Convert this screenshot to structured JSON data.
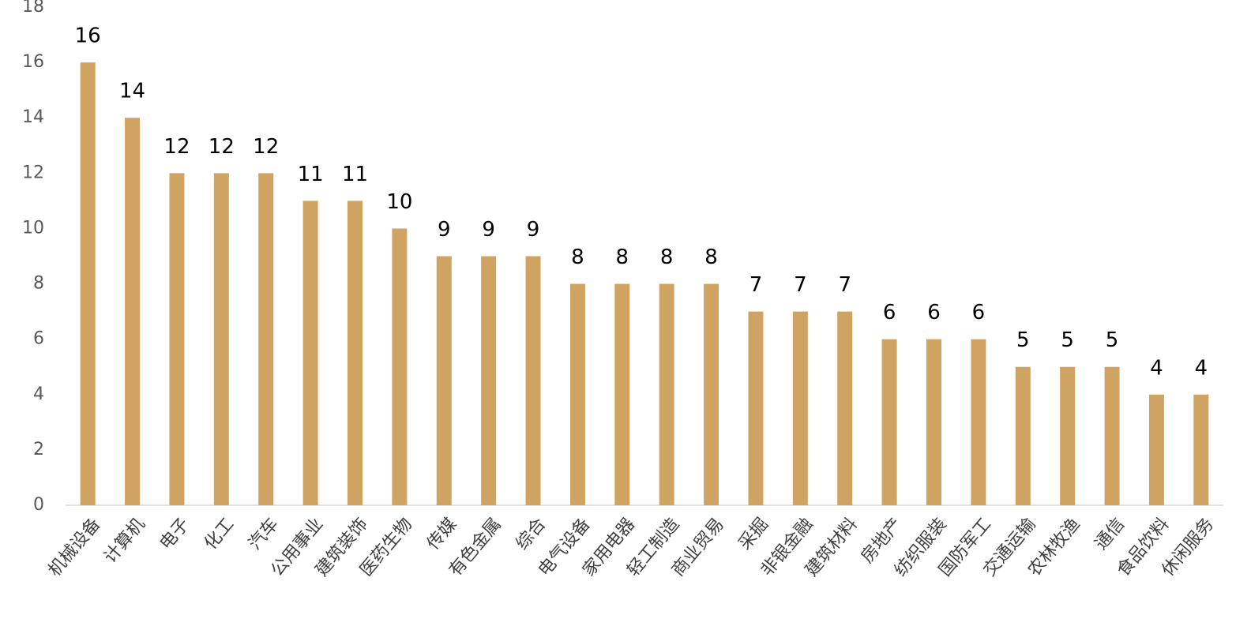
{
  "chart_data": {
    "type": "bar",
    "categories": [
      "机械设备",
      "计算机",
      "电子",
      "化工",
      "汽车",
      "公用事业",
      "建筑装饰",
      "医药生物",
      "传媒",
      "有色金属",
      "综合",
      "电气设备",
      "家用电器",
      "轻工制造",
      "商业贸易",
      "采掘",
      "非银金融",
      "建筑材料",
      "房地产",
      "纺织服装",
      "国防军工",
      "交通运输",
      "农林牧渔",
      "通信",
      "食品饮料",
      "休闲服务"
    ],
    "values": [
      16,
      14,
      12,
      12,
      12,
      11,
      11,
      10,
      9,
      9,
      9,
      8,
      8,
      8,
      8,
      7,
      7,
      7,
      6,
      6,
      6,
      5,
      5,
      5,
      4,
      4
    ],
    "color": "#cfa462",
    "ylim": [
      0,
      18
    ],
    "yticks": [
      0,
      2,
      4,
      6,
      8,
      10,
      12,
      14,
      16,
      18
    ],
    "grid": false
  }
}
